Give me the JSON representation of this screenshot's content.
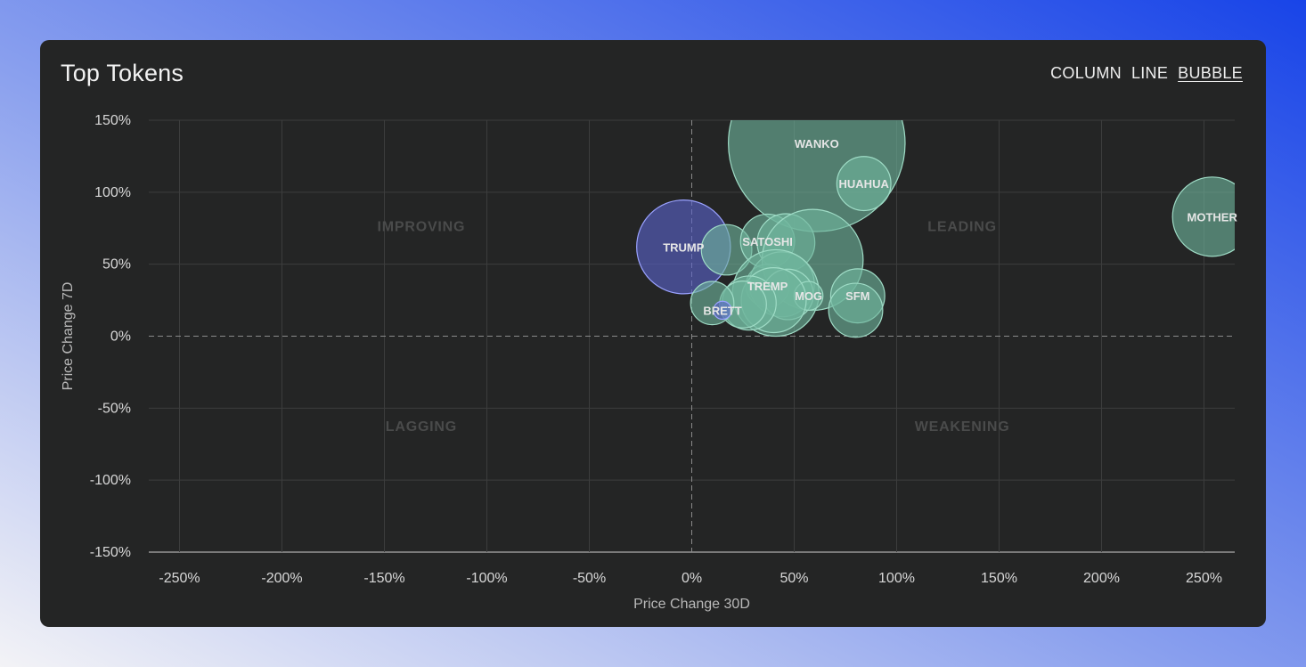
{
  "card": {
    "title": "Top Tokens"
  },
  "view_toggle": {
    "options": [
      "COLUMN",
      "LINE",
      "BUBBLE"
    ],
    "selected": "BUBBLE"
  },
  "colors": {
    "bubble_green": "#6fb59d",
    "bubble_blue": "#5b63c9",
    "card_bg": "#242525"
  },
  "chart_data": {
    "type": "scatter",
    "xlabel": "Price Change 30D",
    "ylabel": "Price Change 7D",
    "xlim": [
      -265,
      265
    ],
    "ylim": [
      -150,
      150
    ],
    "x_ticks": [
      -250,
      -200,
      -150,
      -100,
      -50,
      0,
      50,
      100,
      150,
      200,
      250
    ],
    "y_ticks": [
      150,
      100,
      50,
      0,
      -50,
      -100,
      -150
    ],
    "tick_suffix": "%",
    "grid": true,
    "quadrants": [
      {
        "label": "IMPROVING",
        "x": -132,
        "y": 73
      },
      {
        "label": "LEADING",
        "x": 132,
        "y": 73
      },
      {
        "label": "LAGGING",
        "x": -132,
        "y": -66
      },
      {
        "label": "WEAKENING",
        "x": 132,
        "y": -66
      }
    ],
    "points": [
      {
        "label": "WANKO",
        "x": 61,
        "y": 134,
        "size": 49,
        "color": "green"
      },
      {
        "label": "HUAHUA",
        "x": 84,
        "y": 106,
        "size": 15,
        "color": "green"
      },
      {
        "label": "MOTHER",
        "x": 254,
        "y": 83,
        "size": 22,
        "color": "green"
      },
      {
        "label": "TRUMP",
        "x": -4,
        "y": 62,
        "size": 26,
        "color": "blue"
      },
      {
        "label": "",
        "x": 17,
        "y": 60,
        "size": 14,
        "color": "green"
      },
      {
        "label": "SATOSHI",
        "x": 37,
        "y": 66,
        "size": 15,
        "color": "green"
      },
      {
        "label": "",
        "x": 46,
        "y": 65,
        "size": 16,
        "color": "green"
      },
      {
        "label": "",
        "x": 59,
        "y": 53,
        "size": 28,
        "color": "green"
      },
      {
        "label": "TREMP",
        "x": 37,
        "y": 35,
        "size": 12,
        "color": "green"
      },
      {
        "label": "",
        "x": 44,
        "y": 36,
        "size": 18,
        "color": "green"
      },
      {
        "label": "",
        "x": 41,
        "y": 30,
        "size": 24,
        "color": "green"
      },
      {
        "label": "",
        "x": 47,
        "y": 29,
        "size": 14,
        "color": "green"
      },
      {
        "label": "MOG",
        "x": 57,
        "y": 28,
        "size": 8,
        "color": "green"
      },
      {
        "label": "",
        "x": 40,
        "y": 25,
        "size": 18,
        "color": "green"
      },
      {
        "label": "",
        "x": 28,
        "y": 23,
        "size": 15,
        "color": "green"
      },
      {
        "label": "",
        "x": 25,
        "y": 22,
        "size": 13,
        "color": "green"
      },
      {
        "label": "",
        "x": 10,
        "y": 23,
        "size": 12,
        "color": "green"
      },
      {
        "label": "BRETT",
        "x": 15,
        "y": 18,
        "size": 5,
        "color": "blue"
      },
      {
        "label": "SFM",
        "x": 81,
        "y": 28,
        "size": 15,
        "color": "green"
      },
      {
        "label": "",
        "x": 80,
        "y": 18,
        "size": 15,
        "color": "green"
      }
    ]
  }
}
